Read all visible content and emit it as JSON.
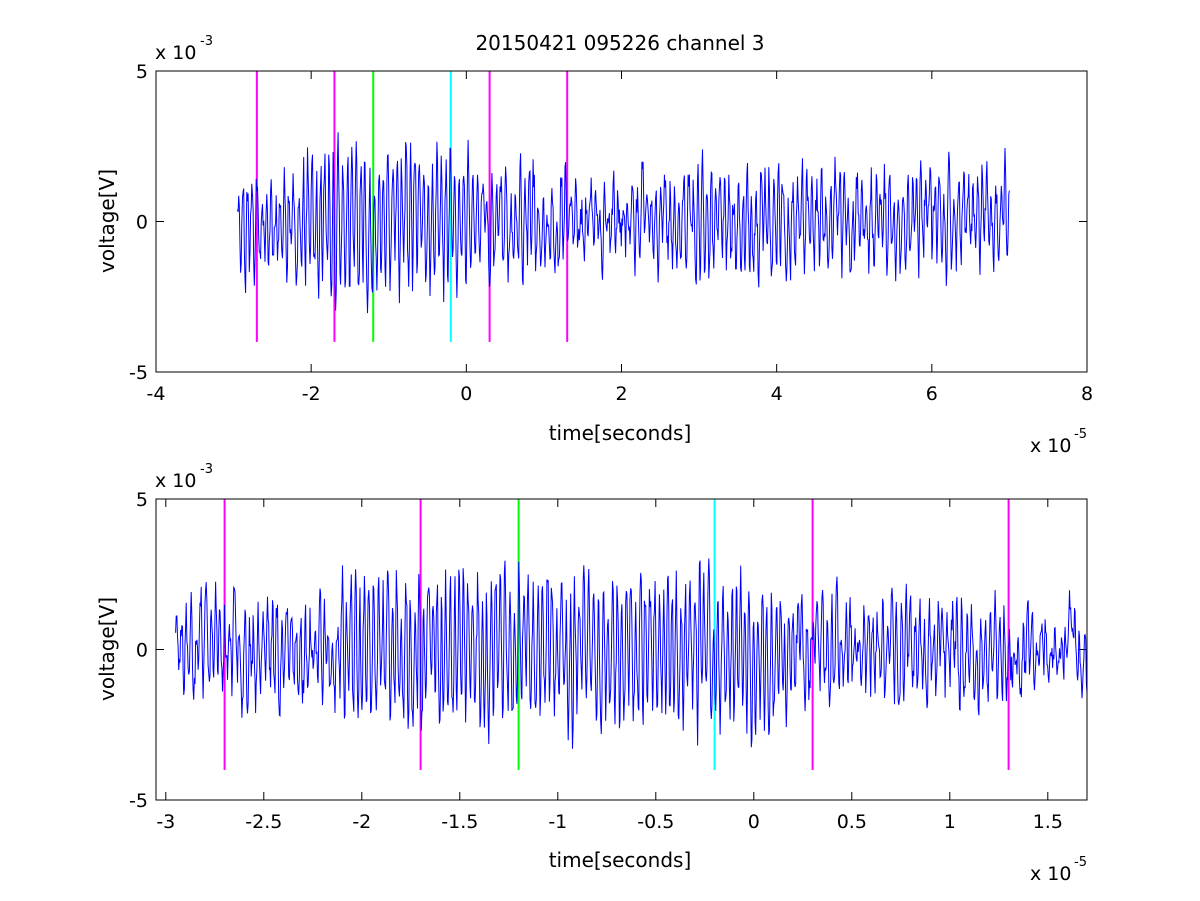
{
  "chart_data": [
    {
      "type": "line",
      "title": "20150421 095226 channel 3",
      "xlabel": "time[seconds]",
      "ylabel": "voltage[V]",
      "x_scale_label": {
        "base": "x 10",
        "exponent": "-5"
      },
      "y_scale_label": {
        "base": "x 10",
        "exponent": "-3"
      },
      "xlim": [
        -4,
        8
      ],
      "ylim": [
        -5,
        5
      ],
      "x_ticks": [
        -4,
        -2,
        0,
        2,
        4,
        6,
        8
      ],
      "x_tick_labels": [
        "-4",
        "-2",
        "0",
        "2",
        "4",
        "6",
        "8"
      ],
      "y_ticks": [
        -5,
        0,
        5
      ],
      "y_tick_labels": [
        "-5",
        "0",
        "5"
      ],
      "grid": false,
      "signal": {
        "color": "#0000ff",
        "x_start": -2.95,
        "x_end": 7.0,
        "seed": 11
      },
      "markers": [
        {
          "x": -2.7,
          "color": "#ff00ff",
          "y_range": [
            -4,
            5
          ]
        },
        {
          "x": -1.7,
          "color": "#ff00ff",
          "y_range": [
            -4,
            5
          ]
        },
        {
          "x": -1.2,
          "color": "#00ff00",
          "y_range": [
            -4,
            5
          ]
        },
        {
          "x": -0.2,
          "color": "#00ffff",
          "y_range": [
            -4,
            5
          ]
        },
        {
          "x": 0.3,
          "color": "#ff00ff",
          "y_range": [
            -4,
            5
          ]
        },
        {
          "x": 1.3,
          "color": "#ff00ff",
          "y_range": [
            -4,
            5
          ]
        }
      ]
    },
    {
      "type": "line",
      "title": "",
      "xlabel": "time[seconds]",
      "ylabel": "voltage[V]",
      "x_scale_label": {
        "base": "x 10",
        "exponent": "-5"
      },
      "y_scale_label": {
        "base": "x 10",
        "exponent": "-3"
      },
      "xlim": [
        -3.05,
        1.7
      ],
      "ylim": [
        -5,
        5
      ],
      "x_ticks": [
        -3,
        -2.5,
        -2,
        -1.5,
        -1,
        -0.5,
        0,
        0.5,
        1,
        1.5
      ],
      "x_tick_labels": [
        "-3",
        "-2.5",
        "-2",
        "-1.5",
        "-1",
        "-0.5",
        "0",
        "0.5",
        "1",
        "1.5"
      ],
      "y_ticks": [
        -5,
        0,
        5
      ],
      "y_tick_labels": [
        "-5",
        "0",
        "5"
      ],
      "grid": false,
      "signal": {
        "color": "#0000ff",
        "x_start": -2.95,
        "x_end": 1.7,
        "seed": 23
      },
      "markers": [
        {
          "x": -2.7,
          "color": "#ff00ff",
          "y_range": [
            -4,
            5
          ]
        },
        {
          "x": -1.7,
          "color": "#ff00ff",
          "y_range": [
            -4,
            5
          ]
        },
        {
          "x": -1.2,
          "color": "#00ff00",
          "y_range": [
            -4,
            5
          ]
        },
        {
          "x": -0.2,
          "color": "#00ffff",
          "y_range": [
            -4,
            5
          ]
        },
        {
          "x": 0.3,
          "color": "#ff00ff",
          "y_range": [
            -4,
            5
          ]
        },
        {
          "x": 1.3,
          "color": "#ff00ff",
          "y_range": [
            -4,
            5
          ]
        }
      ]
    }
  ]
}
